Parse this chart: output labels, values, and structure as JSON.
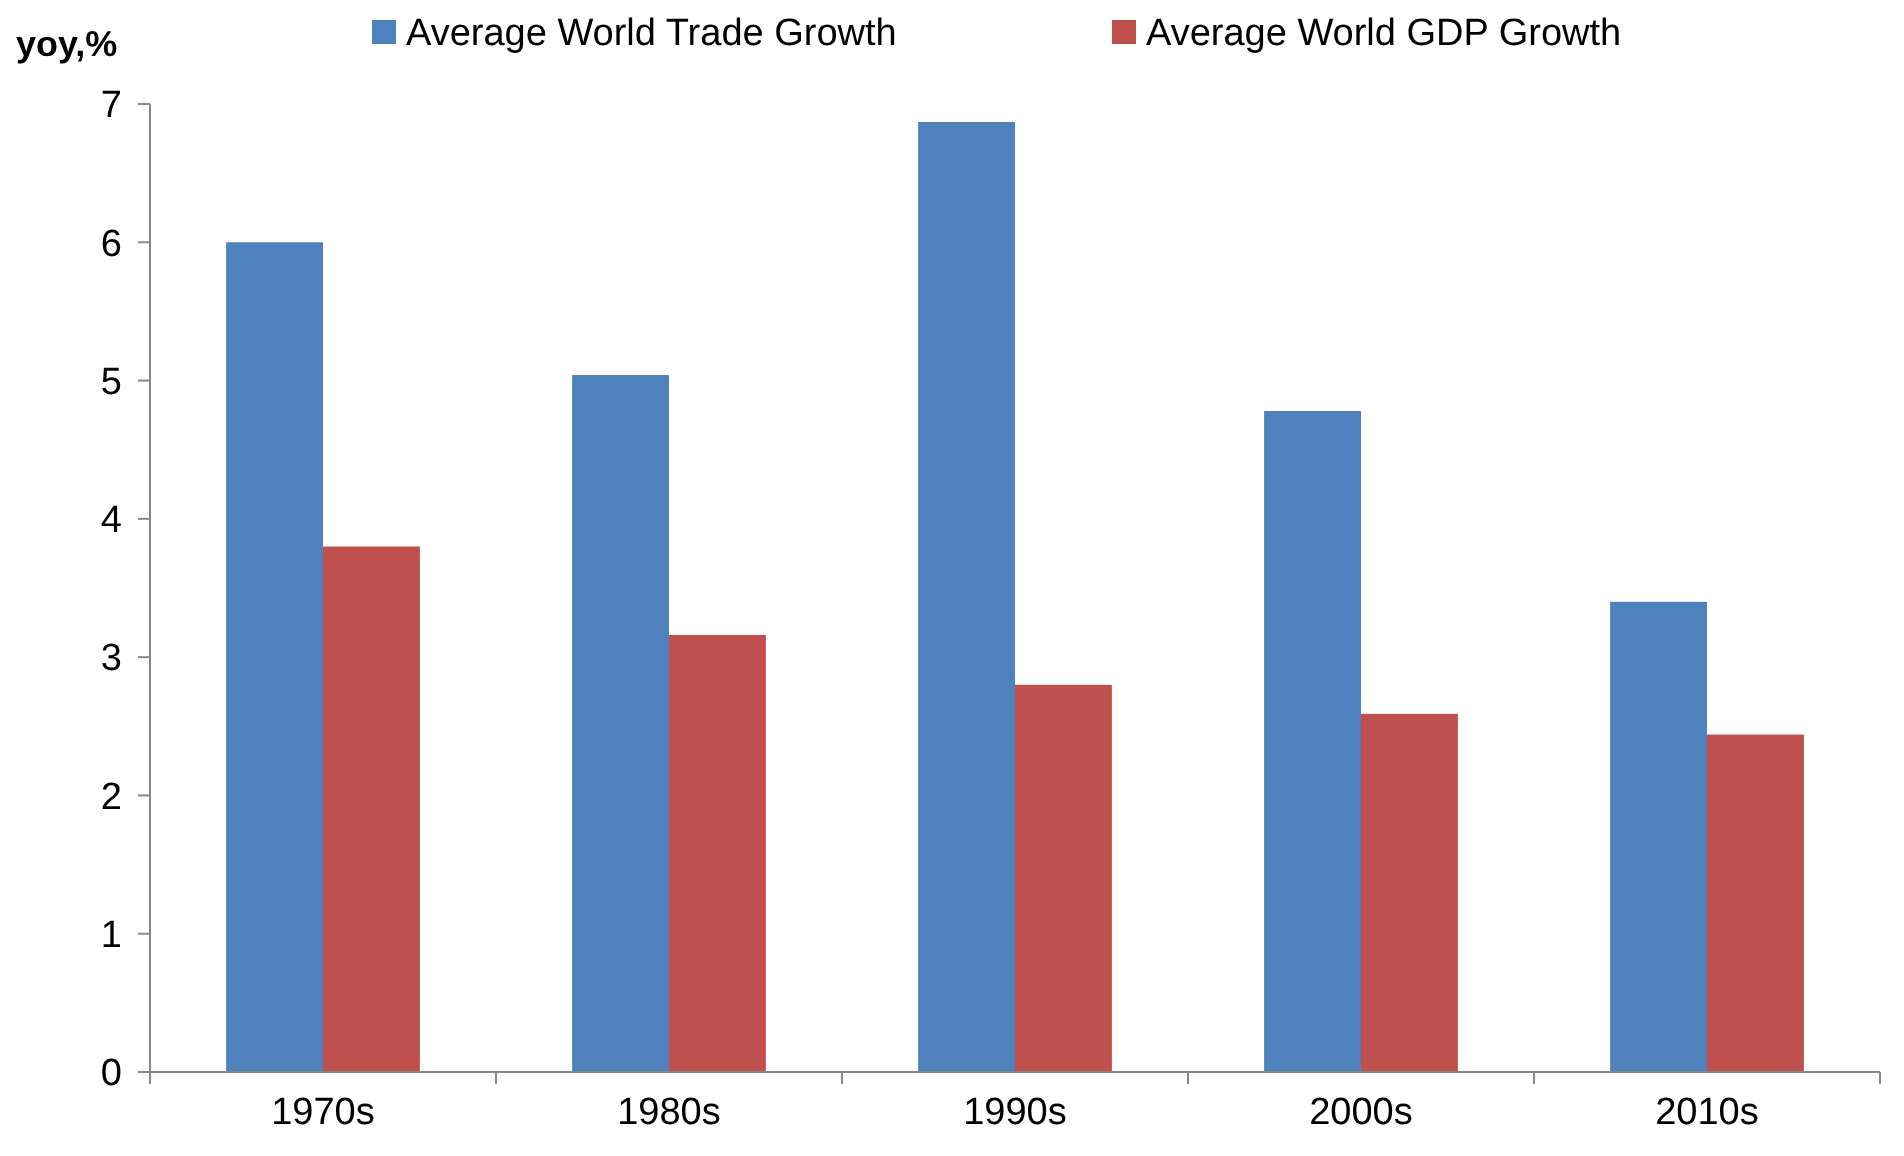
{
  "chart_data": {
    "type": "bar",
    "ylabel": "yoy,%",
    "categories": [
      "1970s",
      "1980s",
      "1990s",
      "2000s",
      "2010s"
    ],
    "series": [
      {
        "name": "Average World Trade Growth",
        "color": "#4f81bd",
        "values": [
          6.0,
          5.04,
          6.87,
          4.78,
          3.4
        ]
      },
      {
        "name": "Average World GDP Growth",
        "color": "#c0504d",
        "values": [
          3.8,
          3.16,
          2.8,
          2.59,
          2.44
        ]
      }
    ],
    "ylim": [
      0,
      7
    ],
    "yticks": [
      0,
      1,
      2,
      3,
      4,
      5,
      6,
      7
    ],
    "grid": false,
    "legend": "top"
  }
}
